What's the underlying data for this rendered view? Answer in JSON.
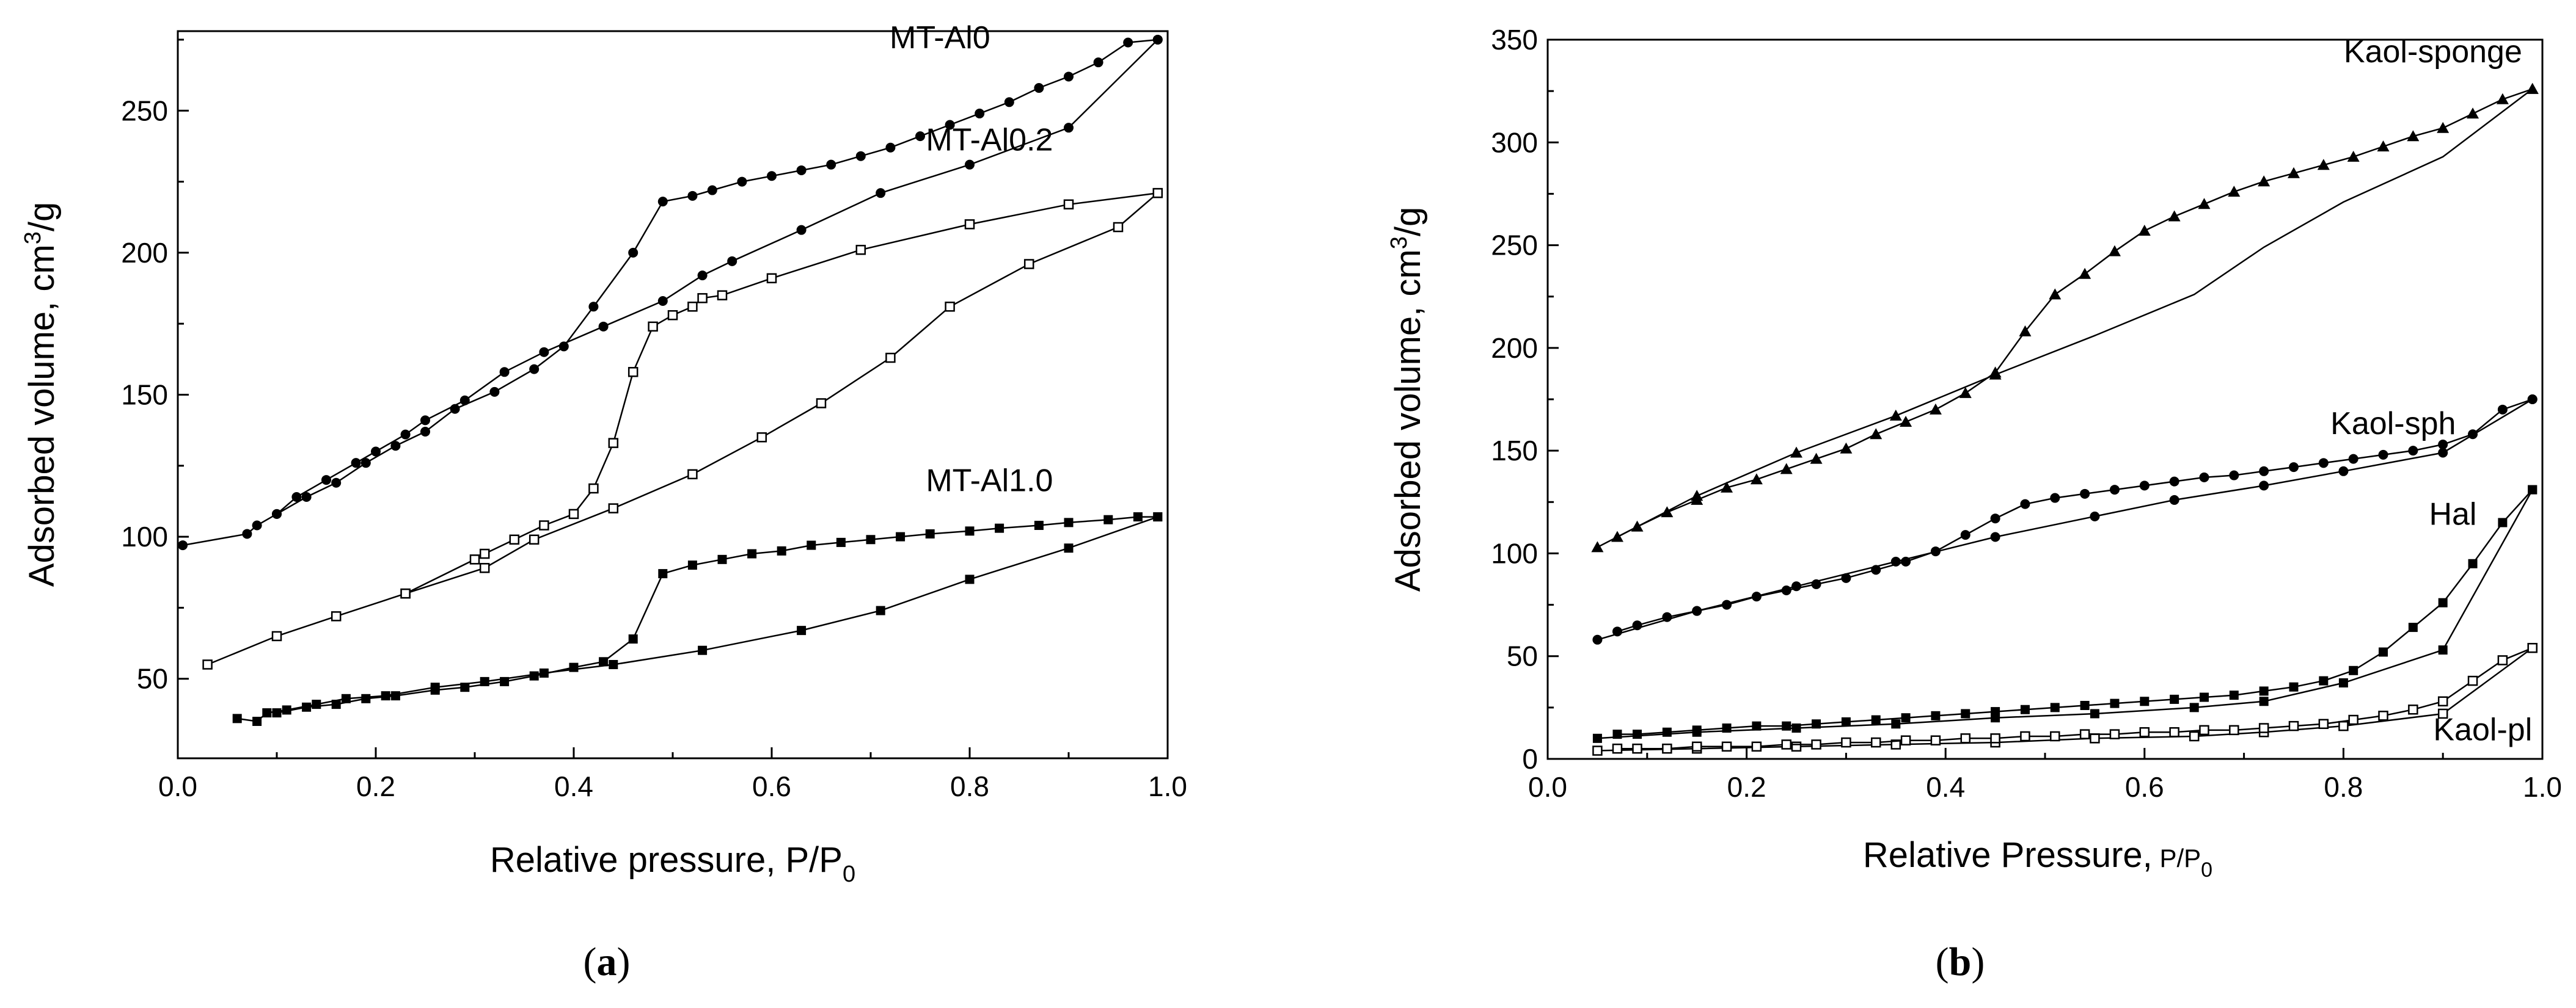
{
  "figure": {
    "panels": [
      {
        "caption_open": "(",
        "caption_letter": "a",
        "caption_close": ")",
        "ylabel_main": "Adsorbed volume, cm",
        "ylabel_sup": "3",
        "ylabel_tail": "/g",
        "xlabel_main": "Relative pressure, P/P",
        "xlabel_sub": "0"
      },
      {
        "caption_open": "(",
        "caption_letter": "b",
        "caption_close": ")",
        "ylabel_main": "Adsorbed volume, cm",
        "ylabel_sup": "3",
        "ylabel_tail": "/g",
        "xlabel_main": "Relative Pressure,",
        "xlabel_small": " P/P",
        "xlabel_sub": "0"
      }
    ]
  },
  "chart_data": [
    {
      "type": "line",
      "title": "",
      "xlabel": "Relative pressure, P/P0",
      "ylabel": "Adsorbed volume, cm3/g",
      "xlim": [
        0.0,
        1.0
      ],
      "ylim": [
        22,
        278
      ],
      "xticks": [
        "0.0",
        "0.2",
        "0.4",
        "0.6",
        "0.8",
        "1.0"
      ],
      "xtick_values": [
        0.0,
        0.2,
        0.4,
        0.6,
        0.8,
        1.0
      ],
      "yticks": [
        "50",
        "100",
        "150",
        "200",
        "250"
      ],
      "ytick_values": [
        50,
        100,
        150,
        200,
        250
      ],
      "series": [
        {
          "name": "MT-Al0",
          "branch": "adsorption",
          "marker": "filled-circle",
          "x": [
            0.005,
            0.07,
            0.08,
            0.1,
            0.12,
            0.15,
            0.18,
            0.2,
            0.23,
            0.25,
            0.29,
            0.33,
            0.37,
            0.43,
            0.49,
            0.53,
            0.56,
            0.63,
            0.71,
            0.8,
            0.9,
            0.99
          ],
          "y": [
            97,
            101,
            104,
            108,
            114,
            120,
            126,
            130,
            136,
            141,
            148,
            158,
            165,
            174,
            183,
            192,
            197,
            208,
            221,
            231,
            244,
            275
          ]
        },
        {
          "name": "MT-Al0",
          "branch": "desorption",
          "marker": "filled-circle",
          "x": [
            0.99,
            0.96,
            0.93,
            0.9,
            0.87,
            0.84,
            0.81,
            0.78,
            0.75,
            0.72,
            0.69,
            0.66,
            0.63,
            0.6,
            0.57,
            0.54,
            0.52,
            0.49,
            0.46,
            0.42,
            0.39,
            0.36,
            0.32,
            0.28,
            0.25,
            0.22,
            0.19,
            0.16,
            0.13,
            0.1
          ],
          "y": [
            275,
            274,
            267,
            262,
            258,
            253,
            249,
            245,
            241,
            237,
            234,
            231,
            229,
            227,
            225,
            222,
            220,
            218,
            200,
            181,
            167,
            159,
            151,
            145,
            137,
            132,
            126,
            119,
            114,
            108
          ]
        },
        {
          "name": "MT-Al0.2",
          "branch": "adsorption",
          "marker": "open-square",
          "x": [
            0.03,
            0.1,
            0.16,
            0.23,
            0.31,
            0.36,
            0.44,
            0.52,
            0.59,
            0.65,
            0.72,
            0.78,
            0.86,
            0.95,
            0.99
          ],
          "y": [
            55,
            65,
            72,
            80,
            89,
            99,
            110,
            122,
            135,
            147,
            163,
            181,
            196,
            209,
            221
          ]
        },
        {
          "name": "MT-Al0.2",
          "branch": "desorption",
          "marker": "open-square",
          "x": [
            0.99,
            0.9,
            0.8,
            0.69,
            0.6,
            0.55,
            0.53,
            0.52,
            0.5,
            0.48,
            0.46,
            0.44,
            0.42,
            0.4,
            0.37,
            0.34,
            0.31,
            0.3,
            0.23
          ],
          "y": [
            221,
            217,
            210,
            201,
            191,
            185,
            184,
            181,
            178,
            174,
            158,
            133,
            117,
            108,
            104,
            99,
            94,
            92,
            80
          ]
        },
        {
          "name": "MT-Al1.0",
          "branch": "adsorption",
          "marker": "filled-square",
          "x": [
            0.06,
            0.08,
            0.09,
            0.11,
            0.14,
            0.17,
            0.21,
            0.26,
            0.31,
            0.37,
            0.44,
            0.53,
            0.63,
            0.71,
            0.8,
            0.9,
            0.99
          ],
          "y": [
            36,
            35,
            38,
            39,
            41,
            43,
            44,
            47,
            49,
            52,
            55,
            60,
            67,
            74,
            85,
            96,
            107
          ]
        },
        {
          "name": "MT-Al1.0",
          "branch": "desorption",
          "marker": "filled-square",
          "x": [
            0.99,
            0.97,
            0.94,
            0.9,
            0.87,
            0.83,
            0.8,
            0.76,
            0.73,
            0.7,
            0.67,
            0.64,
            0.61,
            0.58,
            0.55,
            0.52,
            0.49,
            0.46,
            0.43,
            0.4,
            0.36,
            0.33,
            0.29,
            0.26,
            0.22,
            0.19,
            0.16,
            0.13,
            0.1
          ],
          "y": [
            107,
            107,
            106,
            105,
            104,
            103,
            102,
            101,
            100,
            99,
            98,
            97,
            95,
            94,
            92,
            90,
            87,
            64,
            56,
            54,
            51,
            49,
            47,
            46,
            44,
            43,
            41,
            40,
            38
          ]
        }
      ],
      "annotations": [
        {
          "text": "MT-Al0",
          "x": 0.77,
          "y": 272
        },
        {
          "text": "MT-Al0.2",
          "x": 0.82,
          "y": 236
        },
        {
          "text": "MT-Al1.0",
          "x": 0.82,
          "y": 116
        }
      ]
    },
    {
      "type": "line",
      "title": "",
      "xlabel": "Relative Pressure, P/P0",
      "ylabel": "Adsorbed volume, cm3/g",
      "xlim": [
        0.0,
        1.0
      ],
      "ylim": [
        0,
        350
      ],
      "xticks": [
        "0.0",
        "0.2",
        "0.4",
        "0.6",
        "0.8",
        "1.0"
      ],
      "xtick_values": [
        0.0,
        0.2,
        0.4,
        0.6,
        0.8,
        1.0
      ],
      "yticks": [
        "0",
        "50",
        "100",
        "150",
        "200",
        "250",
        "300",
        "350"
      ],
      "ytick_values": [
        0,
        50,
        100,
        150,
        200,
        250,
        300,
        350
      ],
      "series": [
        {
          "name": "Kaol-sponge",
          "branch": "adsorption",
          "marker": "filled-triangle",
          "x": [
            0.05,
            0.15,
            0.25,
            0.35,
            0.45,
            0.55,
            0.65,
            0.72,
            0.8,
            0.9,
            0.99
          ],
          "y": [
            103,
            128,
            149,
            167,
            187,
            206,
            226,
            249,
            271,
            293,
            326
          ],
          "show_markers": [
            true,
            true,
            true,
            true,
            true,
            false,
            false,
            false,
            false,
            false,
            true
          ]
        },
        {
          "name": "Kaol-sponge",
          "branch": "desorption",
          "marker": "filled-triangle",
          "x": [
            0.99,
            0.96,
            0.93,
            0.9,
            0.87,
            0.84,
            0.81,
            0.78,
            0.75,
            0.72,
            0.69,
            0.66,
            0.63,
            0.6,
            0.57,
            0.54,
            0.51,
            0.48,
            0.45,
            0.42,
            0.39,
            0.36,
            0.33,
            0.3,
            0.27,
            0.24,
            0.21,
            0.18,
            0.15,
            0.12,
            0.09,
            0.07
          ],
          "y": [
            326,
            321,
            314,
            307,
            303,
            298,
            293,
            289,
            285,
            281,
            276,
            270,
            264,
            257,
            247,
            236,
            226,
            208,
            188,
            178,
            170,
            164,
            158,
            151,
            146,
            141,
            136,
            132,
            126,
            120,
            113,
            108
          ]
        },
        {
          "name": "Kaol-sph",
          "branch": "adsorption",
          "marker": "filled-circle",
          "x": [
            0.05,
            0.15,
            0.25,
            0.35,
            0.45,
            0.55,
            0.63,
            0.72,
            0.8,
            0.9,
            0.99
          ],
          "y": [
            58,
            72,
            84,
            96,
            108,
            118,
            126,
            133,
            140,
            149,
            175
          ],
          "show_markers": [
            true,
            true,
            true,
            true,
            true,
            true,
            true,
            true,
            true,
            true,
            true
          ]
        },
        {
          "name": "Kaol-sph",
          "branch": "desorption",
          "marker": "filled-circle",
          "x": [
            0.99,
            0.96,
            0.93,
            0.9,
            0.87,
            0.84,
            0.81,
            0.78,
            0.75,
            0.72,
            0.69,
            0.66,
            0.63,
            0.6,
            0.57,
            0.54,
            0.51,
            0.48,
            0.45,
            0.42,
            0.39,
            0.36,
            0.33,
            0.3,
            0.27,
            0.24,
            0.21,
            0.18,
            0.15,
            0.12,
            0.09,
            0.07
          ],
          "y": [
            175,
            170,
            158,
            153,
            150,
            148,
            146,
            144,
            142,
            140,
            138,
            137,
            135,
            133,
            131,
            129,
            127,
            124,
            117,
            109,
            101,
            96,
            92,
            88,
            85,
            82,
            79,
            75,
            72,
            69,
            65,
            62
          ]
        },
        {
          "name": "Hal",
          "branch": "adsorption",
          "marker": "filled-square",
          "x": [
            0.05,
            0.15,
            0.25,
            0.35,
            0.45,
            0.55,
            0.65,
            0.72,
            0.8,
            0.9,
            0.99
          ],
          "y": [
            10,
            13,
            15,
            17,
            20,
            22,
            25,
            28,
            37,
            53,
            131
          ],
          "show_markers": [
            true,
            true,
            true,
            true,
            true,
            true,
            true,
            true,
            true,
            true,
            true
          ]
        },
        {
          "name": "Hal",
          "branch": "desorption",
          "marker": "filled-square",
          "x": [
            0.99,
            0.96,
            0.93,
            0.9,
            0.87,
            0.84,
            0.81,
            0.78,
            0.75,
            0.72,
            0.69,
            0.66,
            0.63,
            0.6,
            0.57,
            0.54,
            0.51,
            0.48,
            0.45,
            0.42,
            0.39,
            0.36,
            0.33,
            0.3,
            0.27,
            0.24,
            0.21,
            0.18,
            0.15,
            0.12,
            0.09,
            0.07
          ],
          "y": [
            131,
            115,
            95,
            76,
            64,
            52,
            43,
            38,
            35,
            33,
            31,
            30,
            29,
            28,
            27,
            26,
            25,
            24,
            23,
            22,
            21,
            20,
            19,
            18,
            17,
            16,
            16,
            15,
            14,
            13,
            12,
            12
          ]
        },
        {
          "name": "Kaol-pl",
          "branch": "adsorption",
          "marker": "open-square",
          "x": [
            0.05,
            0.15,
            0.25,
            0.35,
            0.45,
            0.55,
            0.65,
            0.72,
            0.8,
            0.9,
            0.99
          ],
          "y": [
            4,
            5,
            6,
            7,
            8,
            10,
            11,
            13,
            16,
            22,
            54
          ],
          "show_markers": [
            true,
            true,
            true,
            true,
            true,
            true,
            true,
            true,
            true,
            true,
            true
          ]
        },
        {
          "name": "Kaol-pl",
          "branch": "desorption",
          "marker": "open-square",
          "x": [
            0.99,
            0.96,
            0.93,
            0.9,
            0.87,
            0.84,
            0.81,
            0.78,
            0.75,
            0.72,
            0.69,
            0.66,
            0.63,
            0.6,
            0.57,
            0.54,
            0.51,
            0.48,
            0.45,
            0.42,
            0.39,
            0.36,
            0.33,
            0.3,
            0.27,
            0.24,
            0.21,
            0.18,
            0.15,
            0.12,
            0.09,
            0.07
          ],
          "y": [
            54,
            48,
            38,
            28,
            24,
            21,
            19,
            17,
            16,
            15,
            14,
            14,
            13,
            13,
            12,
            12,
            11,
            11,
            10,
            10,
            9,
            9,
            8,
            8,
            7,
            7,
            6,
            6,
            6,
            5,
            5,
            5
          ]
        }
      ],
      "annotations": [
        {
          "text": "Kaol-sponge",
          "x": 0.89,
          "y": 339
        },
        {
          "text": "Kaol-sph",
          "x": 0.85,
          "y": 158
        },
        {
          "text": "Hal",
          "x": 0.91,
          "y": 114
        },
        {
          "text": "Kaol-pl",
          "x": 0.94,
          "y": 9
        }
      ]
    }
  ]
}
